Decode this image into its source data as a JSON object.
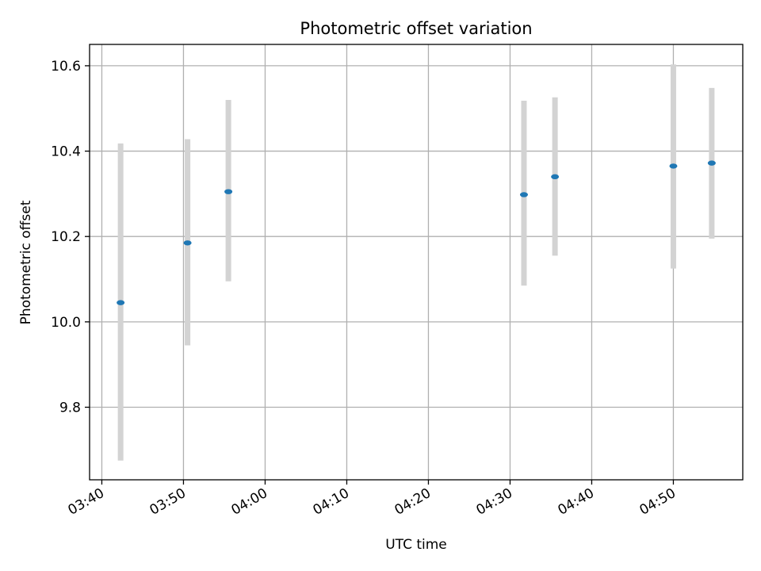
{
  "chart_data": {
    "type": "scatter",
    "title": "Photometric offset variation",
    "xlabel": "UTC time",
    "ylabel": "Photometric offset",
    "x_ticks": [
      "03:40",
      "03:50",
      "04:00",
      "04:10",
      "04:20",
      "04:30",
      "04:40",
      "04:50"
    ],
    "y_ticks": [
      "9.8",
      "10.0",
      "10.2",
      "10.4",
      "10.6"
    ],
    "xlim": [
      "03:38.5",
      "04:58.5"
    ],
    "ylim": [
      9.63,
      10.65
    ],
    "grid": true,
    "colors": {
      "point": "#1f77b4",
      "errorbar": "#d3d3d3",
      "grid": "#b0b0b0",
      "axes": "#000000"
    },
    "points": [
      {
        "time": "03:42.3",
        "value": 10.045,
        "err_low": 9.675,
        "err_high": 10.418
      },
      {
        "time": "03:50.5",
        "value": 10.185,
        "err_low": 9.945,
        "err_high": 10.428
      },
      {
        "time": "03:55.5",
        "value": 10.305,
        "err_low": 10.095,
        "err_high": 10.52
      },
      {
        "time": "04:31.7",
        "value": 10.298,
        "err_low": 10.085,
        "err_high": 10.518
      },
      {
        "time": "04:35.5",
        "value": 10.34,
        "err_low": 10.155,
        "err_high": 10.526
      },
      {
        "time": "04:50.0",
        "value": 10.365,
        "err_low": 10.125,
        "err_high": 10.603
      },
      {
        "time": "04:54.7",
        "value": 10.372,
        "err_low": 10.195,
        "err_high": 10.548
      }
    ]
  }
}
